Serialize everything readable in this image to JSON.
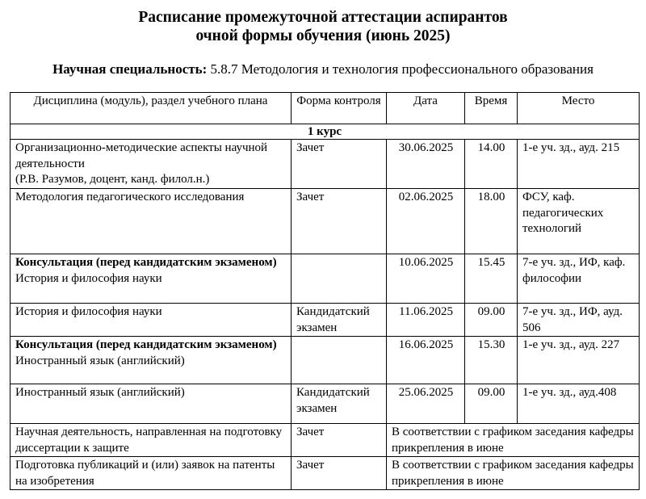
{
  "title": {
    "line1": "Расписание промежуточной аттестации аспирантов",
    "line2": "очной формы обучения (июнь 2025)"
  },
  "specialty": {
    "label": "Научная специальность:",
    "value": "5.8.7 Методология и технология профессионального образования"
  },
  "table": {
    "headers": [
      "Дисциплина (модуль), раздел учебного плана",
      "Форма контроля",
      "Дата",
      "Время",
      "Место"
    ],
    "course": "1 курс",
    "rows": [
      {
        "bold": "",
        "discipline": "Организационно-методические аспекты научной деятельности",
        "note": "(Р.В. Разумов, доцент, канд. филол.н.)",
        "form": "Зачет",
        "date": "30.06.2025",
        "time": "14.00",
        "place": "1-е уч. зд., ауд. 215"
      },
      {
        "bold": "",
        "discipline": "Методология педагогического исследования",
        "note": "",
        "form": "Зачет",
        "date": "02.06.2025",
        "time": "18.00",
        "place": "ФСУ, каф. педагогических технологий"
      },
      {
        "bold": "Консультация (перед кандидатским экзаменом)",
        "discipline": "История и философия науки",
        "note": "",
        "form": "",
        "date": "10.06.2025",
        "time": "15.45",
        "place": "7-е уч. зд., ИФ, каф. философии"
      },
      {
        "bold": "",
        "discipline": "История и философия науки",
        "note": "",
        "form": "Кандидатский экзамен",
        "date": "11.06.2025",
        "time": "09.00",
        "place": "7-е уч. зд., ИФ, ауд. 506"
      },
      {
        "bold": "Консультация (перед кандидатским экзаменом)",
        "discipline": "Иностранный язык (английский)",
        "note": "",
        "form": "",
        "date": "16.06.2025",
        "time": "15.30",
        "place": "1-е уч. зд., ауд. 227"
      },
      {
        "bold": "",
        "discipline": "Иностранный язык (английский)",
        "note": "",
        "form": "Кандидатский экзамен",
        "date": "25.06.2025",
        "time": "09.00",
        "place": "1-е уч. зд., ауд.408"
      },
      {
        "discipline": "Научная деятельность, направленная на подготовку диссертации к защите",
        "form": "Зачет",
        "merged": "В соответствии с графиком заседания кафедры прикрепления в июне"
      },
      {
        "discipline": "Подготовка публикаций и (или) заявок на патенты на изобретения",
        "form": "Зачет",
        "merged": "В соответствии с графиком заседания кафедры прикрепления в июне"
      }
    ]
  }
}
